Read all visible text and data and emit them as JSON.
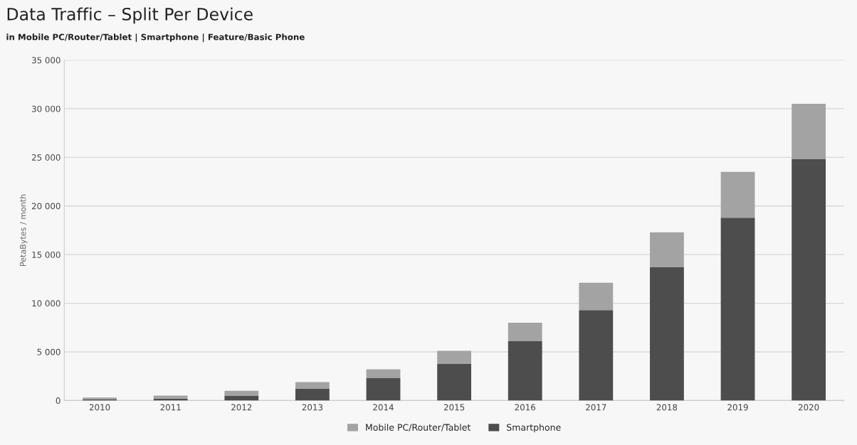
{
  "chart_data": {
    "type": "bar",
    "title": "Data Traffic – Split Per Device",
    "subtitle": "in Mobile PC/Router/Tablet | Smartphone | Feature/Basic Phone",
    "ylabel": "PetaBytes / month",
    "categories": [
      "2010",
      "2011",
      "2012",
      "2013",
      "2014",
      "2015",
      "2016",
      "2017",
      "2018",
      "2019",
      "2020"
    ],
    "stacked": true,
    "series": [
      {
        "name": "Smartphone",
        "color": "#4d4d4d",
        "values": [
          100,
          200,
          500,
          1200,
          2300,
          3800,
          6100,
          9300,
          13700,
          18800,
          24800
        ]
      },
      {
        "name": "Mobile PC/Router/Tablet",
        "color": "#a3a3a3",
        "values": [
          200,
          300,
          500,
          700,
          900,
          1300,
          1900,
          2800,
          3600,
          4700,
          5700
        ]
      }
    ],
    "ylim": [
      0,
      35000
    ],
    "yticks": [
      {
        "value": 0,
        "label": "0"
      },
      {
        "value": 5000,
        "label": "5 000"
      },
      {
        "value": 10000,
        "label": "10 000"
      },
      {
        "value": 15000,
        "label": "15 000"
      },
      {
        "value": 20000,
        "label": "20 000"
      },
      {
        "value": 25000,
        "label": "25 000"
      },
      {
        "value": 30000,
        "label": "30 000"
      },
      {
        "value": 35000,
        "label": "35 000"
      }
    ],
    "grid": "y",
    "legend": "bottom"
  }
}
